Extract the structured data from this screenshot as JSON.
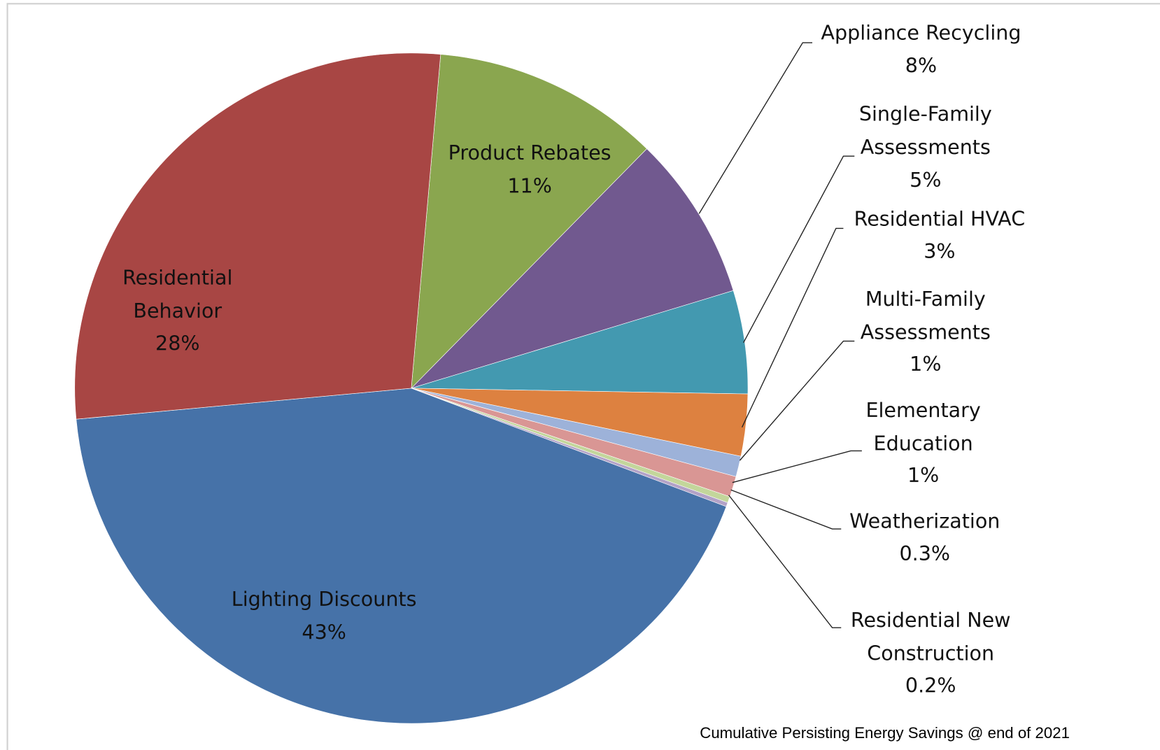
{
  "chart_data": {
    "type": "pie",
    "title": "Cumulative Persisting Energy Savings @ end of 2021",
    "categories": [
      "Product Rebates",
      "Appliance Recycling",
      "Single-Family Assessments",
      "Residential HVAC",
      "Multi-Family Assessments",
      "Elementary Education",
      "Weatherization",
      "Residential New Construction",
      "Lighting Discounts",
      "Residential Behavior"
    ],
    "values": [
      11,
      8,
      5,
      3,
      1,
      1,
      0.3,
      0.2,
      43,
      28
    ],
    "value_labels": [
      "11%",
      "8%",
      "5%",
      "3%",
      "1%",
      "1%",
      "0.3%",
      "0.2%",
      "43%",
      "28%"
    ],
    "colors": [
      "#8aa64f",
      "#71598f",
      "#4399b0",
      "#dd8140",
      "#9db2d9",
      "#d99694",
      "#c3d69b",
      "#b3a2c7",
      "#4672a8",
      "#a84644"
    ]
  }
}
